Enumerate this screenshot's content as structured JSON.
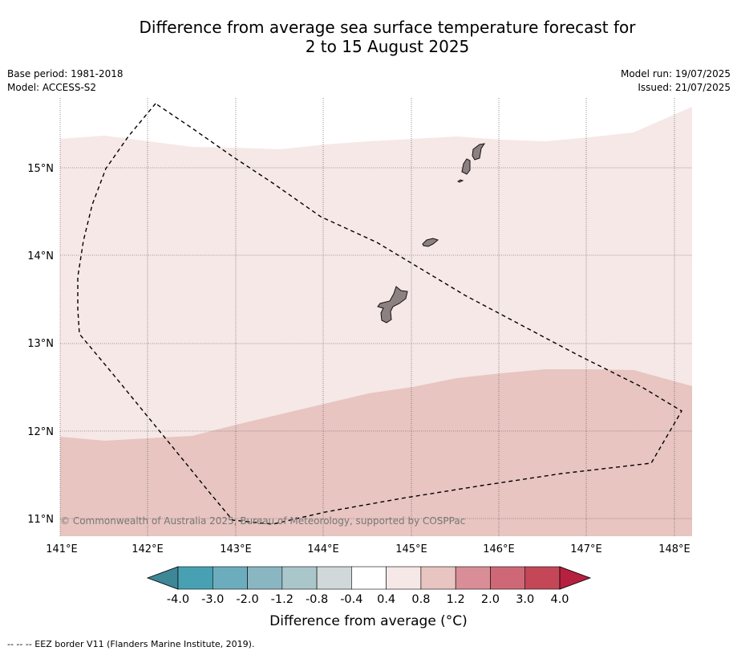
{
  "header": {
    "title_line1": "Difference from average sea surface temperature forecast for",
    "title_line2": "2 to 15 August 2025",
    "base_period": "Base period: 1981-2018",
    "model": "Model: ACCESS-S2",
    "model_run": "Model run: 19/07/2025",
    "issued": "Issued: 21/07/2025"
  },
  "map": {
    "lon_labels": [
      "141°E",
      "142°E",
      "143°E",
      "144°E",
      "145°E",
      "146°E",
      "147°E",
      "148°E"
    ],
    "lat_labels": [
      "15°N",
      "14°N",
      "13°N",
      "12°N",
      "11°N"
    ],
    "copyright": "© Commonwealth of Australia 2025, Bureau of Meteorology, supported by COSPPac",
    "anomaly_colors": {
      "0.4_to_0.8": "#f5e8e6",
      "0.8_to_1.2": "#e8c5c1"
    },
    "land_color": "#8c8180"
  },
  "colorbar": {
    "ticks": [
      "-4.0",
      "-3.0",
      "-2.0",
      "-1.2",
      "-0.8",
      "-0.4",
      "0.4",
      "0.8",
      "1.2",
      "2.0",
      "3.0",
      "4.0"
    ],
    "colors": [
      "#48a1b2",
      "#6cadbd",
      "#8ab6c2",
      "#a9c6ca",
      "#d0d8da",
      "#ffffff",
      "#f5e8e6",
      "#e8c5c1",
      "#d98e97",
      "#cf6876",
      "#c44758"
    ],
    "under_color": "#3d8797",
    "over_color": "#b5213f",
    "label": "Difference from average (°C)"
  },
  "footer": {
    "legend": "--  --  -- EEZ border V11 (Flanders Marine Institute, 2019)."
  }
}
